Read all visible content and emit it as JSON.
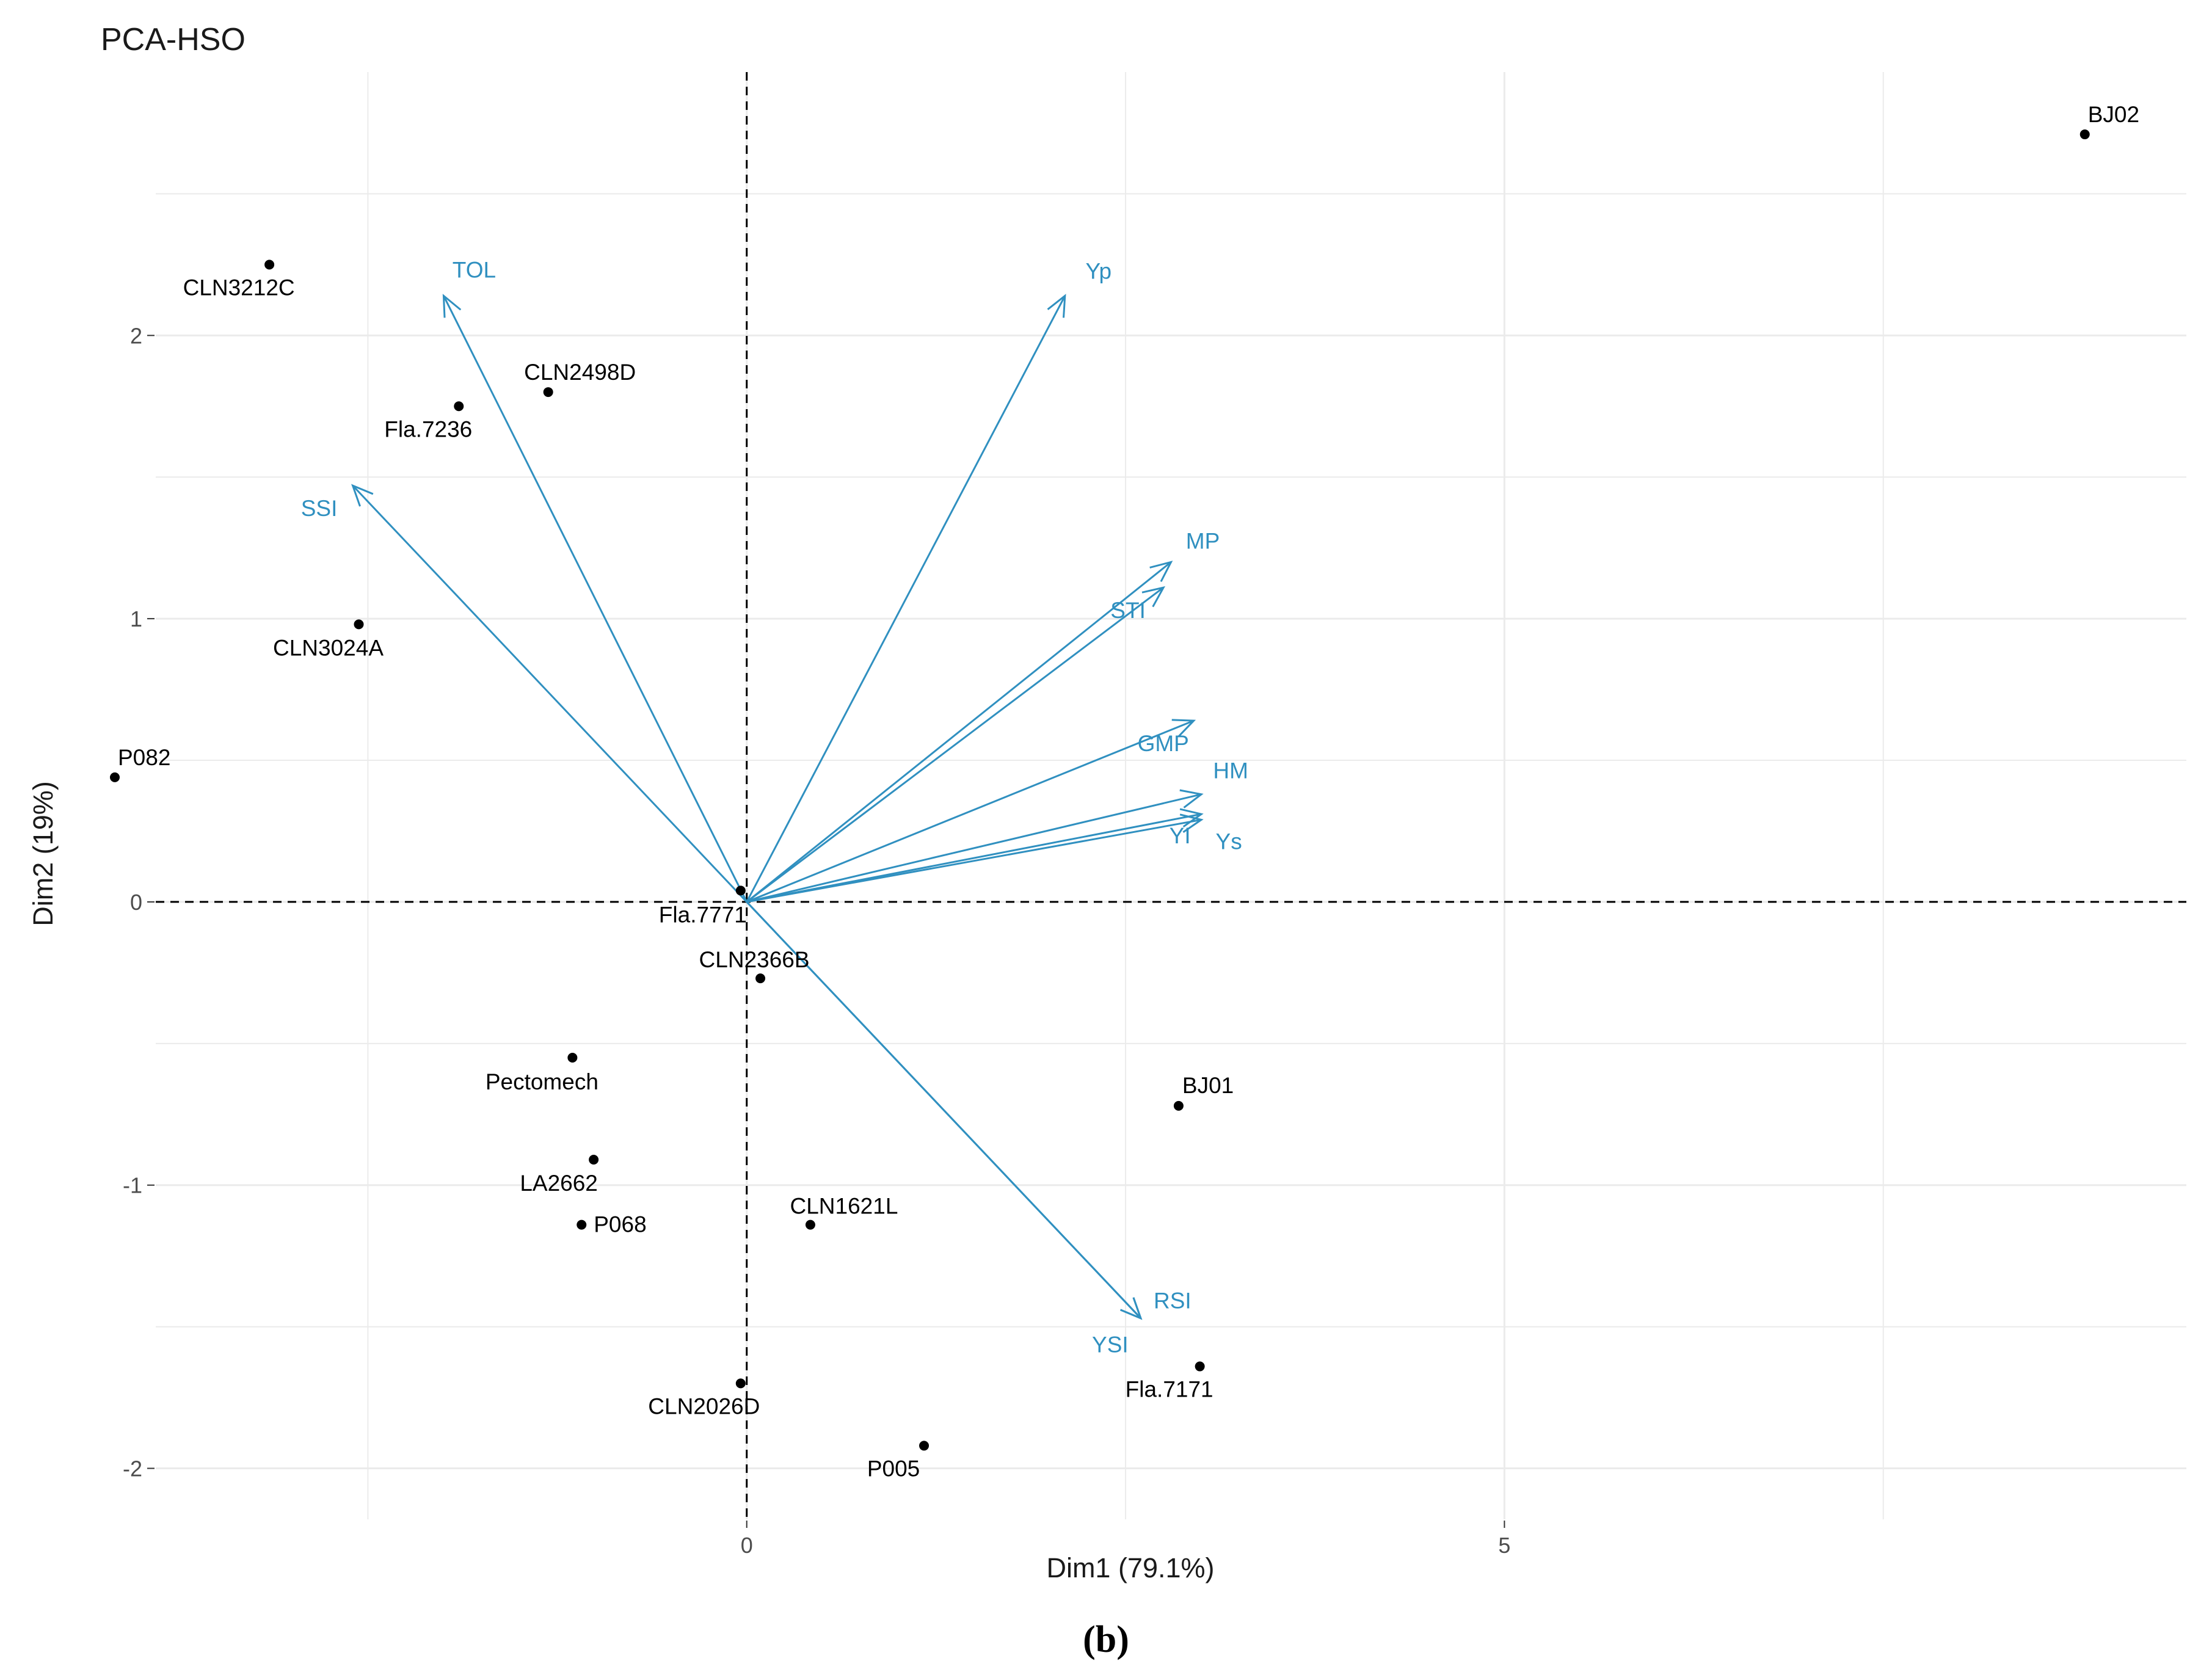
{
  "chart_data": {
    "type": "scatter",
    "title": "PCA-HSO",
    "xlabel": "Dim1 (79.1%)",
    "ylabel": "Dim2 (19%)",
    "xlim": [
      -3.9,
      9.5
    ],
    "ylim": [
      -2.18,
      2.93
    ],
    "x_ticks": [
      0,
      5
    ],
    "x_tick_labels": [
      "0",
      "5"
    ],
    "y_ticks": [
      -2,
      -1,
      0,
      1,
      2
    ],
    "y_tick_labels": [
      "-2",
      "-1",
      "0",
      "1",
      "2"
    ],
    "x_minor_gridlines": [
      -2.5,
      2.5,
      7.5
    ],
    "y_minor_gridlines": [
      -1.5,
      -0.5,
      0.5,
      1.5,
      2.5
    ],
    "grid": true,
    "reference_lines": {
      "x": 0,
      "y": 0,
      "style": "dashed"
    },
    "individuals": [
      {
        "name": "BJ02",
        "x": 8.83,
        "y": 2.71
      },
      {
        "name": "CLN3212C",
        "x": -3.15,
        "y": 2.25
      },
      {
        "name": "CLN2498D",
        "x": -1.31,
        "y": 1.8
      },
      {
        "name": "Fla.7236",
        "x": -1.9,
        "y": 1.75
      },
      {
        "name": "CLN3024A",
        "x": -2.56,
        "y": 0.98
      },
      {
        "name": "P082",
        "x": -4.17,
        "y": 0.44
      },
      {
        "name": "Fla.7771",
        "x": -0.04,
        "y": 0.04
      },
      {
        "name": "CLN2366B",
        "x": 0.09,
        "y": -0.27
      },
      {
        "name": "Pectomech",
        "x": -1.15,
        "y": -0.55
      },
      {
        "name": "BJ01",
        "x": 2.85,
        "y": -0.72
      },
      {
        "name": "LA2662",
        "x": -1.01,
        "y": -0.91
      },
      {
        "name": "P068",
        "x": -1.09,
        "y": -1.14
      },
      {
        "name": "CLN1621L",
        "x": 0.42,
        "y": -1.14
      },
      {
        "name": "Fla.7171",
        "x": 2.99,
        "y": -1.64
      },
      {
        "name": "CLN2026D",
        "x": -0.04,
        "y": -1.7
      },
      {
        "name": "P005",
        "x": 1.17,
        "y": -1.92
      }
    ],
    "variables": [
      {
        "name": "TOL",
        "x": -2.0,
        "y": 2.14
      },
      {
        "name": "Yp",
        "x": 2.1,
        "y": 2.14
      },
      {
        "name": "SSI",
        "x": -2.6,
        "y": 1.47
      },
      {
        "name": "MP",
        "x": 2.8,
        "y": 1.2
      },
      {
        "name": "STI",
        "x": 2.75,
        "y": 1.11
      },
      {
        "name": "GMP",
        "x": 2.95,
        "y": 0.64
      },
      {
        "name": "HM",
        "x": 3.0,
        "y": 0.38
      },
      {
        "name": "YI",
        "x": 3.0,
        "y": 0.31
      },
      {
        "name": "Ys",
        "x": 3.0,
        "y": 0.29
      },
      {
        "name": "RSI",
        "x": 2.6,
        "y": -1.47
      },
      {
        "name": "YSI",
        "x": 2.6,
        "y": -1.47
      }
    ],
    "colors": {
      "individuals": "#000000",
      "variables": "#3090c0",
      "grid": "#ebebeb",
      "reference": "#000000"
    }
  },
  "caption": "(b)"
}
